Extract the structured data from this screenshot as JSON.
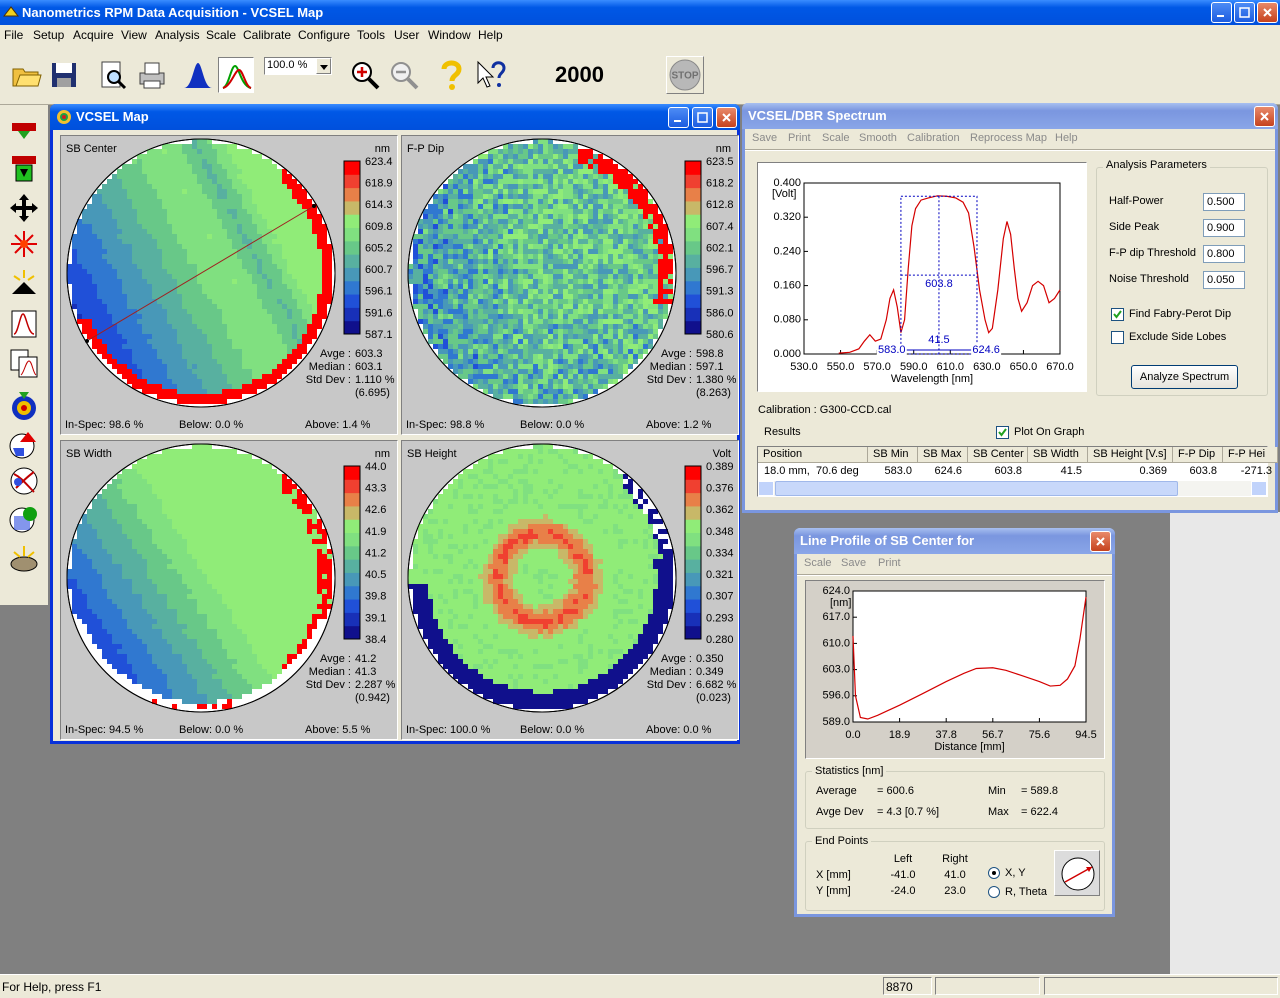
{
  "app": {
    "title": "Nanometrics RPM Data Acquisition - VCSEL Map",
    "menu": [
      "File",
      "Setup",
      "Acquire",
      "View",
      "Analysis",
      "Scale",
      "Calibrate",
      "Configure",
      "Tools",
      "User",
      "Window",
      "Help"
    ],
    "zoom": "100.0 %",
    "counter": "2000",
    "stop": "STOP"
  },
  "status": {
    "help": "For Help, press F1",
    "code": "8870"
  },
  "vcsel_map": {
    "title": "VCSEL Map",
    "panels": [
      {
        "title": "SB Center",
        "unit": "nm",
        "scale": [
          "623.4",
          "618.9",
          "614.3",
          "609.8",
          "605.2",
          "600.7",
          "596.1",
          "591.6",
          "587.1"
        ],
        "stats": [
          [
            "Avge :",
            "603.3"
          ],
          [
            "Median :",
            "603.1"
          ],
          [
            "Std Dev :",
            "1.110 %"
          ]
        ],
        "extra": "(6.695)",
        "in_spec": "In-Spec: 98.6 %",
        "below": "Below:  0.0 %",
        "above": "Above:  1.4 %"
      },
      {
        "title": "F-P Dip",
        "unit": "nm",
        "scale": [
          "623.5",
          "618.2",
          "612.8",
          "607.4",
          "602.1",
          "596.7",
          "591.3",
          "586.0",
          "580.6"
        ],
        "stats": [
          [
            "Avge :",
            "598.8"
          ],
          [
            "Median :",
            "597.1"
          ],
          [
            "Std Dev :",
            "1.380 %"
          ]
        ],
        "extra": "(8.263)",
        "in_spec": "In-Spec: 98.8 %",
        "below": "Below:  0.0 %",
        "above": "Above:  1.2 %"
      },
      {
        "title": "SB Width",
        "unit": "nm",
        "scale": [
          "44.0",
          "43.3",
          "42.6",
          "41.9",
          "41.2",
          "40.5",
          "39.8",
          "39.1",
          "38.4"
        ],
        "stats": [
          [
            "Avge :",
            "41.2"
          ],
          [
            "Median :",
            "41.3"
          ],
          [
            "Std Dev :",
            "2.287 %"
          ]
        ],
        "extra": "(0.942)",
        "in_spec": "In-Spec: 94.5 %",
        "below": "Below:  0.0 %",
        "above": "Above:  5.5 %"
      },
      {
        "title": "SB Height",
        "unit": "Volt",
        "scale": [
          "0.389",
          "0.376",
          "0.362",
          "0.348",
          "0.334",
          "0.321",
          "0.307",
          "0.293",
          "0.280"
        ],
        "stats": [
          [
            "Avge :",
            "0.350"
          ],
          [
            "Median :",
            "0.349"
          ],
          [
            "Std Dev :",
            "6.682 %"
          ]
        ],
        "extra": "(0.023)",
        "in_spec": "In-Spec: 100.0 %",
        "below": "Below:  0.0 %",
        "above": "Above:  0.0 %"
      }
    ]
  },
  "spectrum": {
    "title": "VCSEL/DBR Spectrum",
    "menu": [
      "Save",
      "Print",
      "Scale",
      "Smooth",
      "Calibration",
      "Reprocess Map",
      "Help"
    ],
    "chart": {
      "type": "line",
      "y_label": "[Volt]",
      "x_label": "Wavelength [nm]",
      "xlim": [
        530,
        670
      ],
      "ylim": [
        0,
        0.4
      ],
      "xticks": [
        {
          "value": 530,
          "label": "530.0"
        },
        {
          "value": 550,
          "label": "550.0"
        },
        {
          "value": 570,
          "label": "570.0"
        },
        {
          "value": 590,
          "label": "590.0"
        },
        {
          "value": 610,
          "label": "610.0"
        },
        {
          "value": 630,
          "label": "630.0"
        },
        {
          "value": 650,
          "label": "650.0"
        },
        {
          "value": 670,
          "label": "670.0"
        }
      ],
      "yticks": [
        {
          "value": 0,
          "label": "0.000"
        },
        {
          "value": 0.08,
          "label": "0.080"
        },
        {
          "value": 0.16,
          "label": "0.160"
        },
        {
          "value": 0.24,
          "label": "0.240"
        },
        {
          "value": 0.32,
          "label": "0.320"
        },
        {
          "value": 0.4,
          "label": "0.400"
        }
      ],
      "x": [
        549,
        555,
        560,
        563,
        566,
        569,
        572,
        575,
        577,
        579,
        581,
        583,
        585,
        587,
        589,
        591,
        594,
        598,
        603,
        608,
        613,
        617,
        620,
        623,
        626,
        629,
        631,
        633,
        636,
        639,
        641,
        643,
        645,
        647,
        649,
        652,
        655,
        658,
        661,
        664,
        667,
        670
      ],
      "series": [
        {
          "color": "#d40000",
          "values": [
            0.002,
            0.004,
            0.012,
            0.03,
            0.045,
            0.03,
            0.035,
            0.08,
            0.13,
            0.15,
            0.11,
            0.05,
            0.08,
            0.2,
            0.3,
            0.34,
            0.36,
            0.365,
            0.37,
            0.369,
            0.365,
            0.355,
            0.33,
            0.25,
            0.15,
            0.08,
            0.05,
            0.06,
            0.15,
            0.27,
            0.31,
            0.28,
            0.2,
            0.13,
            0.1,
            0.12,
            0.16,
            0.17,
            0.16,
            0.12,
            0.13,
            0.15
          ]
        }
      ],
      "annotations": [
        "603.8",
        "41.5",
        "583.0",
        "624.6"
      ]
    },
    "params_title": "Analysis Parameters",
    "params": [
      [
        "Half-Power",
        "0.500"
      ],
      [
        "Side Peak",
        "0.900"
      ],
      [
        "F-P dip Threshold",
        "0.800"
      ],
      [
        "Noise Threshold",
        "0.050"
      ]
    ],
    "checks": [
      {
        "label": "Find Fabry-Perot Dip",
        "checked": true
      },
      {
        "label": "Exclude Side Lobes",
        "checked": false
      }
    ],
    "button": "Analyze Spectrum",
    "calibration": "Calibration : G300-CCD.cal",
    "results_label": "Results",
    "plot_on_graph": {
      "label": "Plot On Graph",
      "checked": true
    },
    "results_table": {
      "headers": [
        "Position",
        "SB Min",
        "SB Max",
        "SB Center",
        "SB Width",
        "SB Height [V.s]",
        "F-P Dip",
        "F-P Hei"
      ],
      "rows": [
        [
          "18.0 mm,  70.6 deg",
          "583.0",
          "624.6",
          "603.8",
          "41.5",
          "0.369",
          "603.8",
          "-271.3"
        ]
      ]
    }
  },
  "profile": {
    "title": "Line Profile of SB Center for",
    "menu": [
      "Scale",
      "Save",
      "Print"
    ],
    "chart": {
      "type": "line",
      "y_label": "[nm]",
      "x_label": "Distance [mm]",
      "xlim": [
        0,
        94.5
      ],
      "ylim": [
        589,
        624
      ],
      "xticks": [
        {
          "value": 0,
          "label": "0.0"
        },
        18.9,
        37.8,
        56.7,
        75.6,
        94.5
      ],
      "yticks": [
        {
          "value": 589,
          "label": "589.0"
        },
        {
          "value": 596,
          "label": "596.0"
        },
        {
          "value": 603,
          "label": "603.0"
        },
        {
          "value": 610,
          "label": "610.0"
        },
        {
          "value": 617,
          "label": "617.0"
        },
        {
          "value": 624,
          "label": "624.0"
        }
      ],
      "x": [
        0,
        1,
        3,
        6,
        10,
        18.9,
        28,
        37.8,
        45,
        50,
        56.7,
        62,
        68,
        75.6,
        80,
        84,
        87,
        90,
        92,
        94.5
      ],
      "series": [
        {
          "color": "#d40000",
          "values": [
            612,
            596,
            590.2,
            589.8,
            590.8,
            593.5,
            596.5,
            599.8,
            602,
            603.3,
            603.5,
            602.8,
            601.5,
            599.8,
            598.6,
            598.8,
            600.5,
            604,
            611,
            622.4
          ]
        }
      ]
    },
    "stats_title": "Statistics [nm]",
    "stats": [
      [
        "Average",
        "= 600.6",
        "Min",
        "= 589.8"
      ],
      [
        "Avge Dev",
        "= 4.3 [0.7 %]",
        "Max",
        "= 622.4"
      ]
    ],
    "end_title": "End Points",
    "end_cols": [
      "Left",
      "Right"
    ],
    "end_rows": [
      [
        "X [mm]",
        "-41.0",
        "41.0"
      ],
      [
        "Y [mm]",
        "-24.0",
        "23.0"
      ]
    ],
    "radios": [
      {
        "label": "X, Y",
        "checked": true
      },
      {
        "label": "R, Theta",
        "checked": false
      }
    ]
  }
}
